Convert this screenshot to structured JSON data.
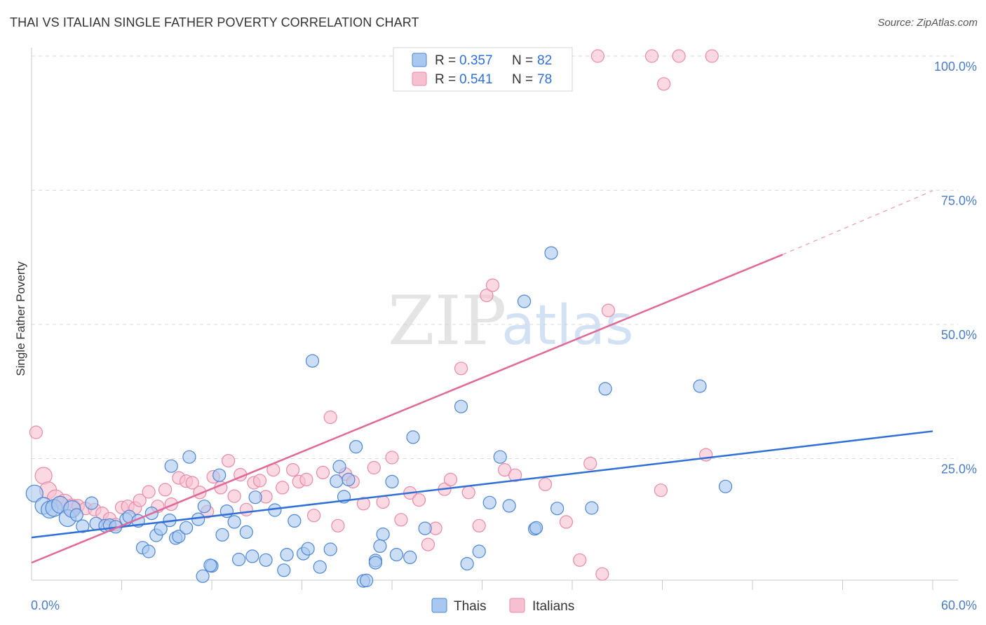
{
  "header": {
    "title": "THAI VS ITALIAN SINGLE FATHER POVERTY CORRELATION CHART",
    "source": "Source: ZipAtlas.com"
  },
  "watermark": {
    "zip": "ZIP",
    "atlas": "atlas"
  },
  "colors": {
    "thais_fill": "#a9c8f0",
    "thais_stroke": "#4d86d4",
    "thais_line": "#2f6fd6",
    "italians_fill": "#f7c0d0",
    "italians_stroke": "#e88aa8",
    "italians_line": "#e0699a",
    "tick_label": "#4a7cc9",
    "grid": "#d9d9d9"
  },
  "legend": {
    "rows": [
      {
        "r_label": "R =",
        "r_value": "0.357",
        "n_label": "N =",
        "n_value": "82"
      },
      {
        "r_label": "R =",
        "r_value": "0.541",
        "n_label": "N =",
        "n_value": "78"
      }
    ]
  },
  "bottom_legend": {
    "thais": "Thais",
    "italians": "Italians"
  },
  "chart_data": {
    "type": "scatter",
    "xlabel": "",
    "ylabel": "Single Father Poverty",
    "xlim": [
      0,
      60
    ],
    "ylim": [
      0,
      100
    ],
    "x_tick_labels": {
      "min": "0.0%",
      "max": "60.0%"
    },
    "y_ticks": [
      {
        "value": 25,
        "label": "25.0%"
      },
      {
        "value": 50,
        "label": "50.0%"
      },
      {
        "value": 75,
        "label": "75.0%"
      },
      {
        "value": 100,
        "label": "100.0%"
      }
    ],
    "grid": true,
    "series": [
      {
        "name": "Thais",
        "r": 0.357,
        "n": 82,
        "trend": {
          "x0": 0,
          "y0": 10.3,
          "x1": 60,
          "y1": 30.1
        },
        "points": [
          [
            0.2,
            18.5
          ],
          [
            0.8,
            16.2
          ],
          [
            1.2,
            15.5
          ],
          [
            1.5,
            15.8
          ],
          [
            1.9,
            16.4
          ],
          [
            2.4,
            13.9
          ],
          [
            2.7,
            15.6
          ],
          [
            3.0,
            14.5
          ],
          [
            4.0,
            16.7
          ],
          [
            3.4,
            12.4
          ],
          [
            4.3,
            12.9
          ],
          [
            4.9,
            12.5
          ],
          [
            5.2,
            12.6
          ],
          [
            5.6,
            12.3
          ],
          [
            6.3,
            13.7
          ],
          [
            6.5,
            14.2
          ],
          [
            7.1,
            13.4
          ],
          [
            7.4,
            8.4
          ],
          [
            7.8,
            7.7
          ],
          [
            8.0,
            14.8
          ],
          [
            8.3,
            10.7
          ],
          [
            8.6,
            11.9
          ],
          [
            9.2,
            13.5
          ],
          [
            9.3,
            23.6
          ],
          [
            9.6,
            10.2
          ],
          [
            9.8,
            10.5
          ],
          [
            10.3,
            12.1
          ],
          [
            10.5,
            25.3
          ],
          [
            11.1,
            13.7
          ],
          [
            11.5,
            16.1
          ],
          [
            11.4,
            3.1
          ],
          [
            12.0,
            5.0
          ],
          [
            12.5,
            21.9
          ],
          [
            12.7,
            10.8
          ],
          [
            13.0,
            15.2
          ],
          [
            13.5,
            13.2
          ],
          [
            13.8,
            6.2
          ],
          [
            14.3,
            11.3
          ],
          [
            14.7,
            6.8
          ],
          [
            14.9,
            17.8
          ],
          [
            15.6,
            6.1
          ],
          [
            16.2,
            15.4
          ],
          [
            16.8,
            4.2
          ],
          [
            17.0,
            7.1
          ],
          [
            17.5,
            13.4
          ],
          [
            18.1,
            7.3
          ],
          [
            18.4,
            8.2
          ],
          [
            18.7,
            43.2
          ],
          [
            19.2,
            4.8
          ],
          [
            19.9,
            8.1
          ],
          [
            20.3,
            20.8
          ],
          [
            20.5,
            23.5
          ],
          [
            20.8,
            17.9
          ],
          [
            21.1,
            21.1
          ],
          [
            21.6,
            27.2
          ],
          [
            22.1,
            2.2
          ],
          [
            22.3,
            2.3
          ],
          [
            22.9,
            6.0
          ],
          [
            23.4,
            10.9
          ],
          [
            23.2,
            8.7
          ],
          [
            24.0,
            20.7
          ],
          [
            24.3,
            7.1
          ],
          [
            25.4,
            29.0
          ],
          [
            26.2,
            12.0
          ],
          [
            28.6,
            34.7
          ],
          [
            29.0,
            5.4
          ],
          [
            29.8,
            7.7
          ],
          [
            30.5,
            16.8
          ],
          [
            31.2,
            25.3
          ],
          [
            31.8,
            16.2
          ],
          [
            32.8,
            54.3
          ],
          [
            33.5,
            11.9
          ],
          [
            34.6,
            63.3
          ],
          [
            35.0,
            15.7
          ],
          [
            37.3,
            15.8
          ],
          [
            38.2,
            38.0
          ],
          [
            44.5,
            38.5
          ],
          [
            46.2,
            19.8
          ],
          [
            33.6,
            12.1
          ],
          [
            22.9,
            5.6
          ],
          [
            11.9,
            5.1
          ],
          [
            25.2,
            6.6
          ]
        ]
      },
      {
        "name": "Italians",
        "r": 0.541,
        "n": 78,
        "trend": {
          "x0": 0,
          "y0": 5.6,
          "x1": 50,
          "y1": 63.0
        },
        "trend_extended": {
          "x0": 50,
          "y0": 63.0,
          "x1": 60,
          "y1": 74.9
        },
        "points": [
          [
            0.3,
            29.9
          ],
          [
            0.8,
            21.8
          ],
          [
            1.1,
            19.1
          ],
          [
            1.6,
            17.6
          ],
          [
            2.2,
            16.8
          ],
          [
            2.7,
            15.9
          ],
          [
            3.1,
            16.2
          ],
          [
            3.6,
            15.7
          ],
          [
            4.2,
            15.5
          ],
          [
            4.7,
            14.8
          ],
          [
            5.2,
            13.8
          ],
          [
            5.6,
            12.7
          ],
          [
            6.0,
            15.9
          ],
          [
            6.4,
            16.1
          ],
          [
            6.9,
            15.8
          ],
          [
            7.2,
            17.2
          ],
          [
            7.8,
            18.8
          ],
          [
            8.4,
            16.1
          ],
          [
            8.9,
            19.2
          ],
          [
            9.3,
            16.5
          ],
          [
            9.8,
            21.4
          ],
          [
            10.3,
            20.8
          ],
          [
            10.7,
            20.5
          ],
          [
            11.2,
            18.7
          ],
          [
            11.7,
            15.1
          ],
          [
            12.1,
            21.6
          ],
          [
            12.6,
            19.6
          ],
          [
            13.1,
            24.6
          ],
          [
            13.5,
            18.0
          ],
          [
            13.9,
            22.0
          ],
          [
            14.3,
            15.5
          ],
          [
            14.8,
            20.5
          ],
          [
            15.2,
            20.9
          ],
          [
            15.6,
            17.9
          ],
          [
            16.1,
            22.9
          ],
          [
            16.7,
            19.6
          ],
          [
            17.4,
            22.9
          ],
          [
            17.8,
            20.7
          ],
          [
            18.3,
            21.1
          ],
          [
            18.8,
            14.4
          ],
          [
            19.4,
            22.4
          ],
          [
            19.9,
            32.7
          ],
          [
            20.4,
            12.5
          ],
          [
            20.9,
            22.1
          ],
          [
            21.4,
            20.7
          ],
          [
            22.1,
            16.6
          ],
          [
            22.8,
            23.3
          ],
          [
            23.4,
            16.9
          ],
          [
            24.0,
            25.2
          ],
          [
            24.6,
            13.6
          ],
          [
            25.2,
            18.6
          ],
          [
            25.8,
            17.3
          ],
          [
            26.4,
            9.0
          ],
          [
            26.9,
            12.0
          ],
          [
            27.5,
            19.3
          ],
          [
            27.9,
            21.1
          ],
          [
            28.6,
            41.8
          ],
          [
            29.1,
            18.7
          ],
          [
            29.8,
            12.5
          ],
          [
            30.3,
            55.4
          ],
          [
            30.7,
            57.3
          ],
          [
            31.5,
            22.9
          ],
          [
            32.2,
            21.9
          ],
          [
            33.0,
            100.0
          ],
          [
            34.2,
            20.2
          ],
          [
            35.1,
            100.0
          ],
          [
            35.6,
            13.2
          ],
          [
            36.5,
            6.1
          ],
          [
            37.2,
            24.1
          ],
          [
            37.7,
            100.0
          ],
          [
            38.0,
            3.5
          ],
          [
            38.4,
            52.6
          ],
          [
            41.3,
            100.0
          ],
          [
            42.1,
            94.8
          ],
          [
            41.9,
            19.1
          ],
          [
            43.1,
            100.0
          ],
          [
            44.9,
            25.7
          ],
          [
            45.3,
            100.0
          ]
        ]
      }
    ]
  }
}
